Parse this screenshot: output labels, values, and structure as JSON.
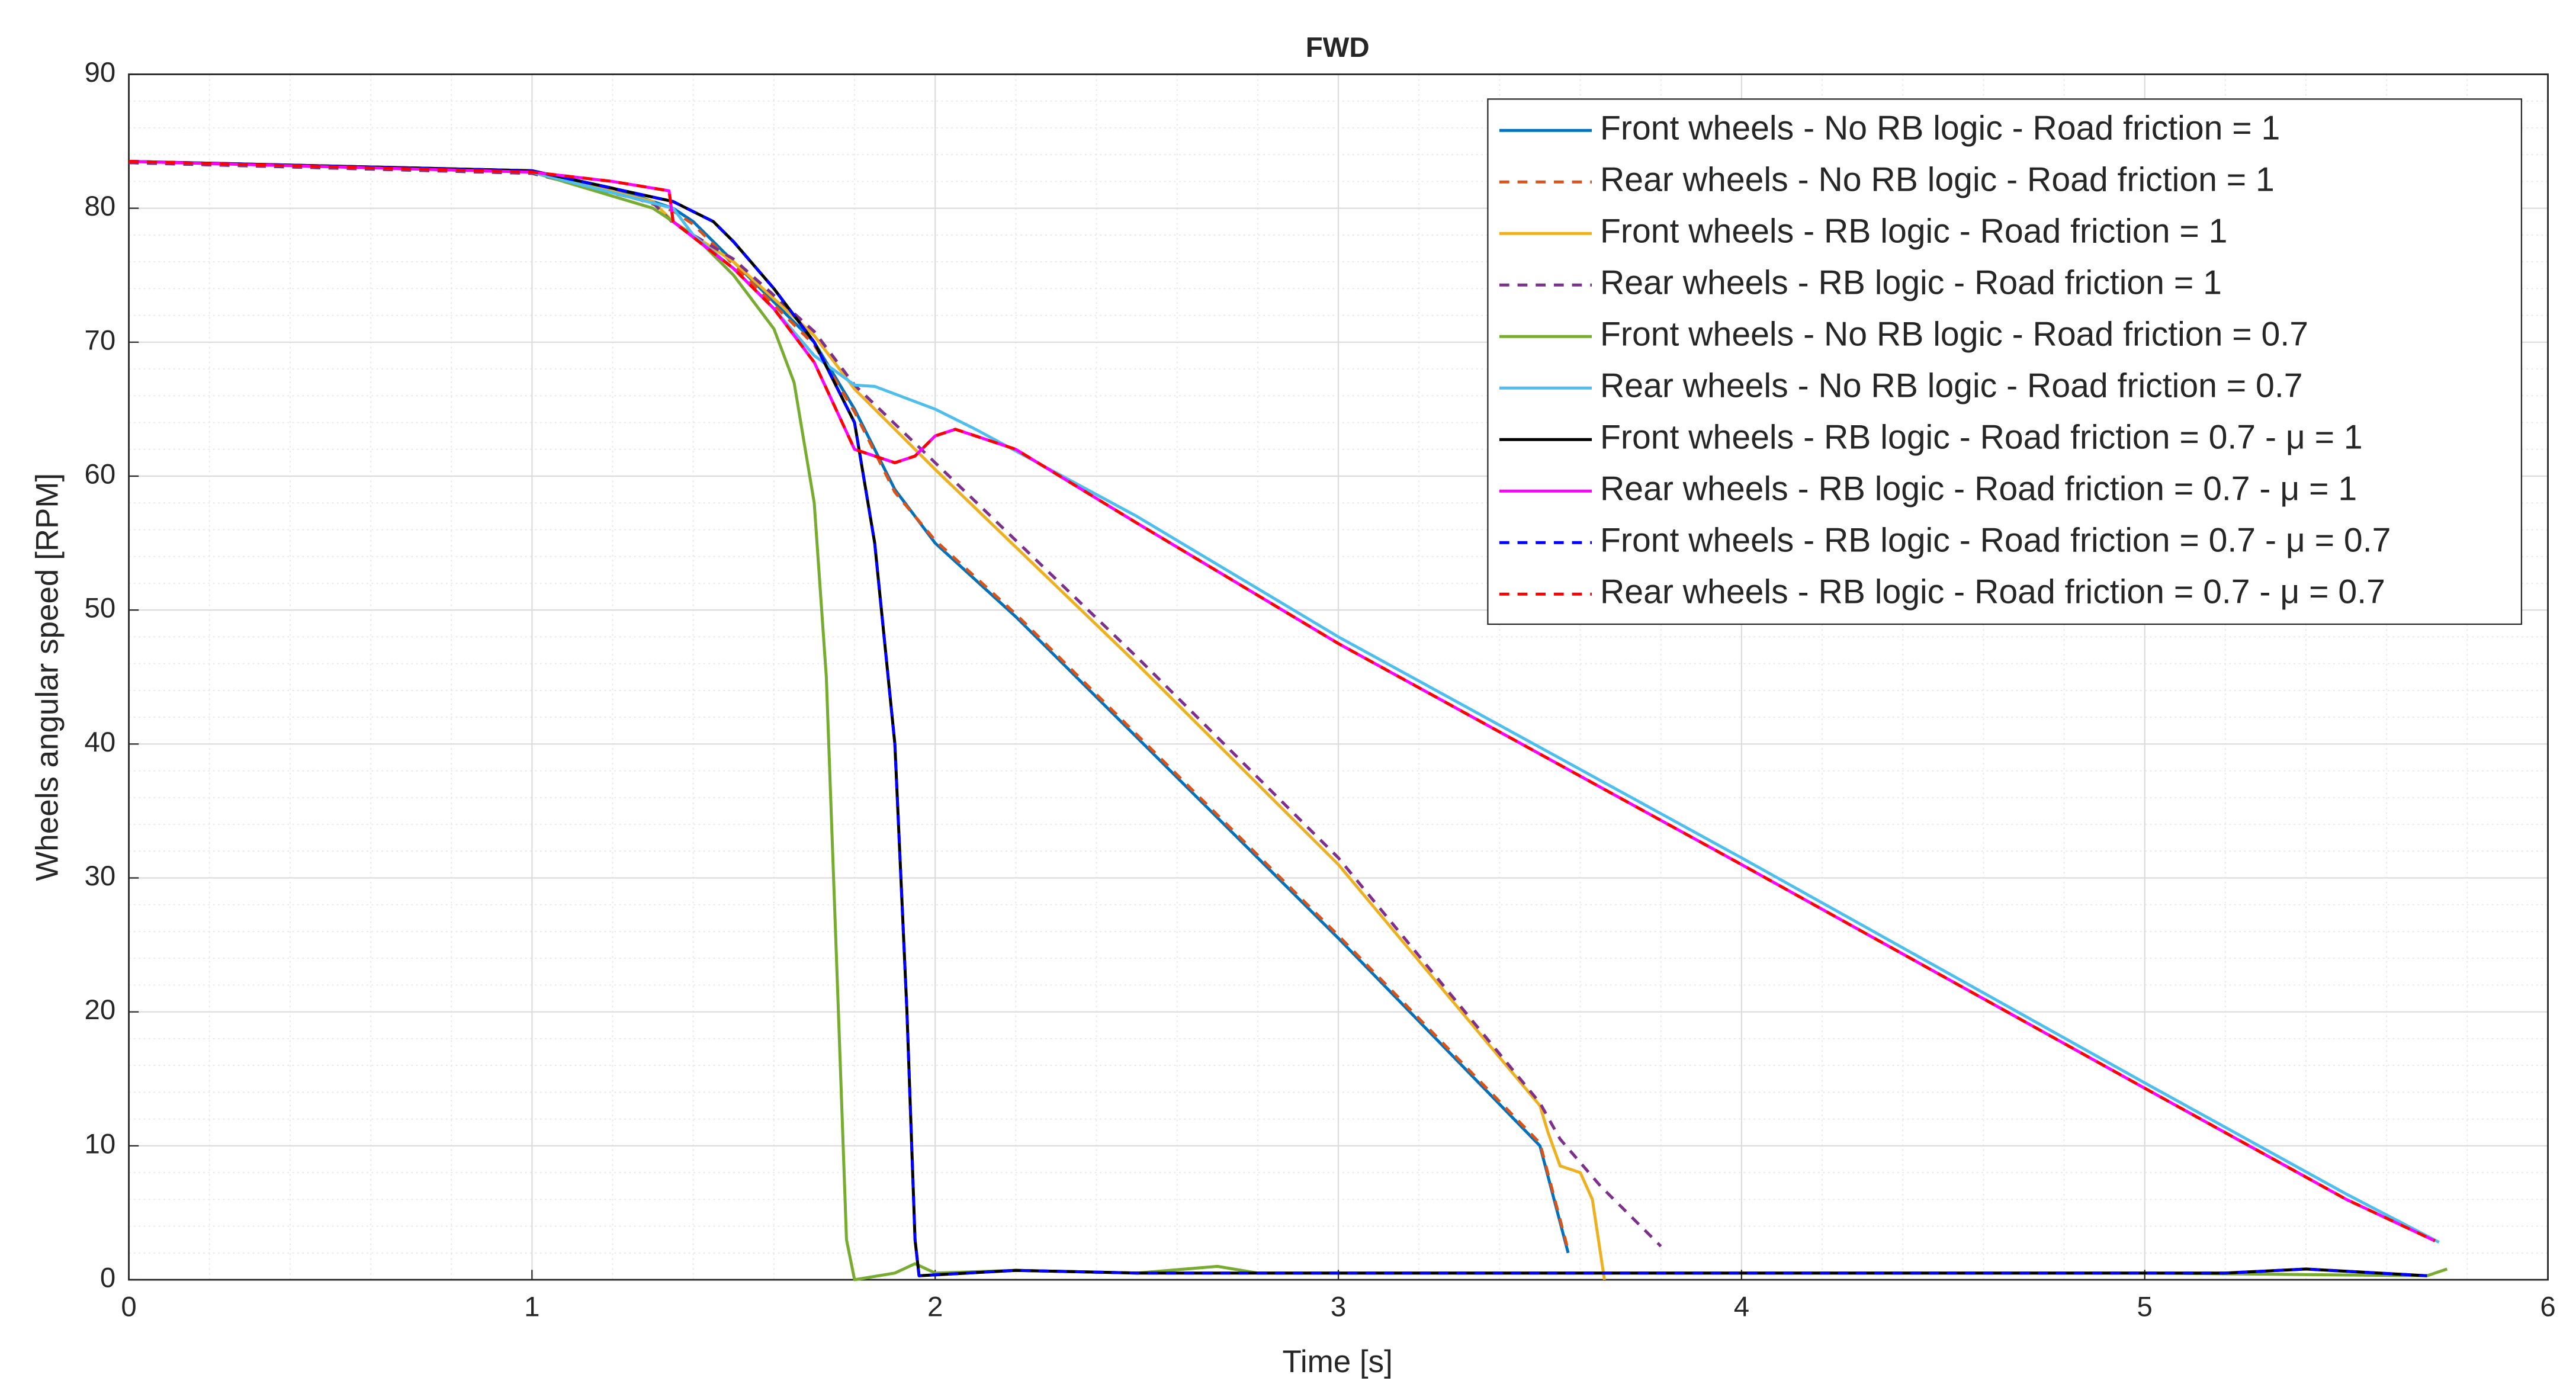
{
  "chart_data": {
    "type": "line",
    "title": "FWD",
    "x_label": "Time [s]",
    "y_label": "Wheels angular speed [RPM]",
    "xlim": [
      0,
      6
    ],
    "ylim": [
      0,
      90
    ],
    "xticks": [
      0,
      1,
      2,
      3,
      4,
      5,
      6
    ],
    "yticks": [
      0,
      10,
      20,
      30,
      40,
      50,
      60,
      70,
      80,
      90
    ],
    "grid": true,
    "minor_grid": true,
    "legend_position": "upper right",
    "series": [
      {
        "name": "Front wheels - No RB logic - Road friction = 1",
        "color": "#0072bd",
        "dash": false,
        "x": [
          0,
          1,
          1.2,
          1.35,
          1.4,
          1.5,
          1.6,
          1.7,
          1.8,
          1.9,
          2,
          2.2,
          2.5,
          3,
          3.5,
          3.57
        ],
        "values": [
          83.5,
          82.8,
          81.5,
          80,
          79,
          76,
          73,
          70,
          65,
          59,
          55,
          49.5,
          40.5,
          25.5,
          10,
          2
        ]
      },
      {
        "name": "Rear wheels - No RB logic - Road friction = 1",
        "color": "#d95319",
        "dash": true,
        "x": [
          0,
          1,
          1.2,
          1.35,
          1.4,
          1.5,
          1.6,
          1.7,
          1.8,
          1.9,
          2,
          2.2,
          2.5,
          3,
          3.5,
          3.57
        ],
        "values": [
          83.4,
          82.6,
          81.3,
          79.8,
          78.8,
          75.8,
          72.8,
          69.8,
          64.8,
          58.8,
          55.2,
          49.7,
          40.7,
          25.7,
          10.2,
          2.2
        ]
      },
      {
        "name": "Front wheels - RB logic - Road friction = 1",
        "color": "#edb120",
        "dash": false,
        "x": [
          0,
          1,
          1.3,
          1.35,
          1.5,
          1.7,
          1.8,
          2,
          2.5,
          3,
          3.5,
          3.52,
          3.55,
          3.6,
          3.63,
          3.66
        ],
        "values": [
          83.5,
          82.7,
          80.5,
          79,
          76,
          70.5,
          66.5,
          60.5,
          46,
          31,
          13,
          11,
          8.5,
          8,
          6,
          0
        ]
      },
      {
        "name": "Rear wheels - RB logic - Road friction = 1",
        "color": "#7e2f8e",
        "dash": true,
        "x": [
          0,
          1,
          1.3,
          1.35,
          1.5,
          1.7,
          1.8,
          2,
          2.5,
          3,
          3.5,
          3.55,
          3.65,
          3.7,
          3.8
        ],
        "values": [
          83.4,
          82.6,
          80.4,
          78.9,
          76.2,
          70.8,
          66.8,
          61,
          46.5,
          31.5,
          13.2,
          10.5,
          7,
          5.5,
          2.5
        ]
      },
      {
        "name": "Front wheels - No RB logic - Road friction = 0.7",
        "color": "#77ac30",
        "dash": false,
        "x": [
          0,
          1,
          1.3,
          1.4,
          1.5,
          1.6,
          1.65,
          1.7,
          1.73,
          1.76,
          1.78,
          1.8,
          1.9,
          1.95,
          2,
          2.2,
          2.5,
          2.7,
          2.8,
          5,
          5.7,
          5.75
        ],
        "values": [
          83.5,
          82.7,
          80,
          78,
          75,
          71,
          67,
          58,
          45,
          20,
          3,
          0,
          0.5,
          1.2,
          0.5,
          0.7,
          0.5,
          1,
          0.5,
          0.5,
          0.3,
          0.8
        ]
      },
      {
        "name": "Rear wheels - No RB logic - Road friction = 0.7",
        "color": "#4dbeee",
        "dash": false,
        "x": [
          0,
          1,
          1.35,
          1.4,
          1.5,
          1.6,
          1.7,
          1.8,
          1.85,
          2,
          2.1,
          2.5,
          3,
          4,
          5,
          5.5,
          5.73
        ],
        "values": [
          83.5,
          82.7,
          80,
          78,
          75.5,
          72.5,
          69,
          66.8,
          66.7,
          65,
          63.5,
          57,
          48,
          31.5,
          14.7,
          6.4,
          2.8
        ]
      },
      {
        "name": "Front wheels - RB logic - Road friction = 0.7 - μ = 1",
        "color": "#000000",
        "dash": false,
        "x": [
          0,
          1,
          1.35,
          1.45,
          1.5,
          1.6,
          1.7,
          1.8,
          1.85,
          1.9,
          1.93,
          1.95,
          1.96,
          2.2,
          2.5,
          5,
          5.2,
          5.4,
          5.7
        ],
        "values": [
          83.5,
          82.8,
          80.5,
          79,
          77.5,
          74,
          70,
          64,
          55,
          40,
          20,
          3,
          0.3,
          0.7,
          0.5,
          0.5,
          0.5,
          0.8,
          0.3
        ]
      },
      {
        "name": "Rear wheels - RB logic - Road friction = 0.7 - μ = 1",
        "color": "#ff00ff",
        "dash": false,
        "x": [
          0,
          1,
          1.2,
          1.34,
          1.35,
          1.5,
          1.6,
          1.7,
          1.8,
          1.9,
          1.95,
          2,
          2.05,
          2.2,
          2.5,
          3,
          4,
          5,
          5.5,
          5.72
        ],
        "values": [
          83.5,
          82.7,
          82,
          81.3,
          79,
          75.5,
          72.5,
          68.5,
          62,
          61,
          61.5,
          63,
          63.5,
          62,
          56.5,
          47.5,
          31,
          14.3,
          6,
          2.9
        ]
      },
      {
        "name": "Front wheels - RB logic - Road friction = 0.7 - μ = 0.7",
        "color": "#0000ff",
        "dash": true,
        "x": [
          0,
          1,
          1.35,
          1.45,
          1.5,
          1.6,
          1.7,
          1.8,
          1.85,
          1.9,
          1.93,
          1.95,
          1.96,
          2.2,
          2.5,
          5,
          5.2,
          5.4,
          5.7
        ],
        "values": [
          83.5,
          82.8,
          80.5,
          79,
          77.5,
          74,
          70,
          64,
          55,
          40,
          20,
          3,
          0.3,
          0.7,
          0.5,
          0.5,
          0.5,
          0.8,
          0.3
        ]
      },
      {
        "name": "Rear wheels - RB logic - Road friction = 0.7 - μ = 0.7",
        "color": "#ff0000",
        "dash": true,
        "x": [
          0,
          1,
          1.2,
          1.34,
          1.35,
          1.5,
          1.6,
          1.7,
          1.8,
          1.9,
          1.95,
          2,
          2.05,
          2.2,
          2.5,
          3,
          4,
          5,
          5.5,
          5.72
        ],
        "values": [
          83.5,
          82.7,
          82,
          81.3,
          79,
          75.5,
          72.5,
          68.5,
          62,
          61,
          61.5,
          63,
          63.5,
          62,
          56.5,
          47.5,
          31,
          14.3,
          6,
          2.9
        ]
      }
    ]
  }
}
